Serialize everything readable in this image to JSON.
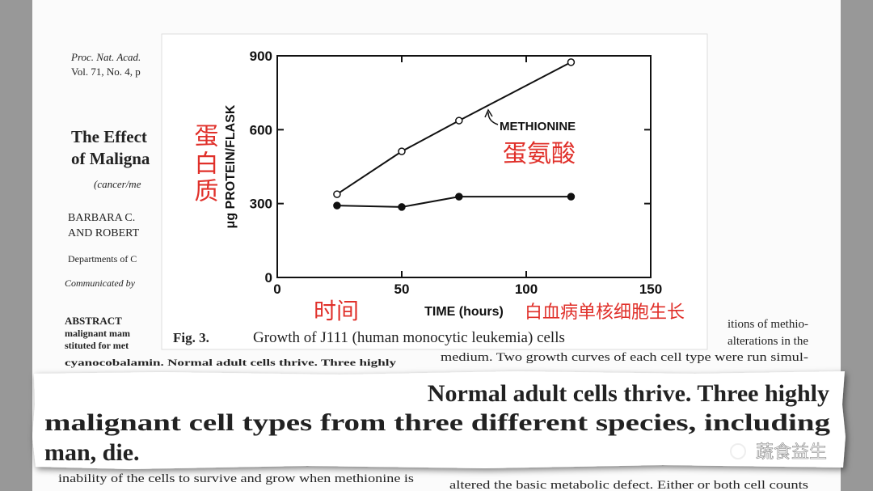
{
  "paper": {
    "header": [
      "Proc. Nat. Acad.",
      "Vol. 71, No. 4, p"
    ],
    "title": [
      "The Effect",
      "of Maligna"
    ],
    "keywords": "(cancer/me",
    "authors": [
      "BARBARA C.",
      "AND ROBERT"
    ],
    "affiliation": "Departments of C",
    "communicated": "Communicated by",
    "abstract_heading": "ABSTRACT",
    "abstract_lines": [
      "malignant mam",
      "stituted for met",
      "cyanocobalamin. Normal adult cells thrive. Three highly"
    ],
    "right_lines": [
      "itions of methio-",
      "alterations in the",
      "medium. Two growth curves of each cell type were run simul-"
    ],
    "bottom_lines": [
      "inability of the cells to survive and grow when methionine is",
      "altered the basic metabolic defect. Either or both cell counts"
    ]
  },
  "chart_data": {
    "type": "line",
    "caption": "Fig. 3.",
    "caption_text": "Growth of J111 (human monocytic leukemia) cells",
    "x_label": "TIME (hours)",
    "y_label": "μg PROTEIN/FLASK",
    "x": [
      24,
      50,
      73,
      118
    ],
    "series": [
      {
        "name": "METHIONINE",
        "color": "#111111",
        "marker": "open",
        "values": [
          338,
          512,
          637,
          874
        ]
      },
      {
        "color": "#111111",
        "marker": "filled",
        "values": [
          292,
          286,
          328,
          328
        ]
      }
    ],
    "xlim": [
      0,
      150
    ],
    "ylim": [
      0,
      900
    ],
    "xticks": [
      0,
      50,
      100,
      150
    ],
    "yticks": [
      0,
      300,
      600,
      900
    ]
  },
  "annotations": {
    "y_label_zh": "蛋白质",
    "series_zh": "蛋氨酸",
    "x_label_zh": "时间",
    "caption_zh": "白血病单核细胞生长"
  },
  "highlight": {
    "lines": [
      "Normal adult cells thrive. Three highly",
      "malignant cell types from three different species, including",
      "man, die."
    ]
  },
  "watermark": "蔬食益生"
}
